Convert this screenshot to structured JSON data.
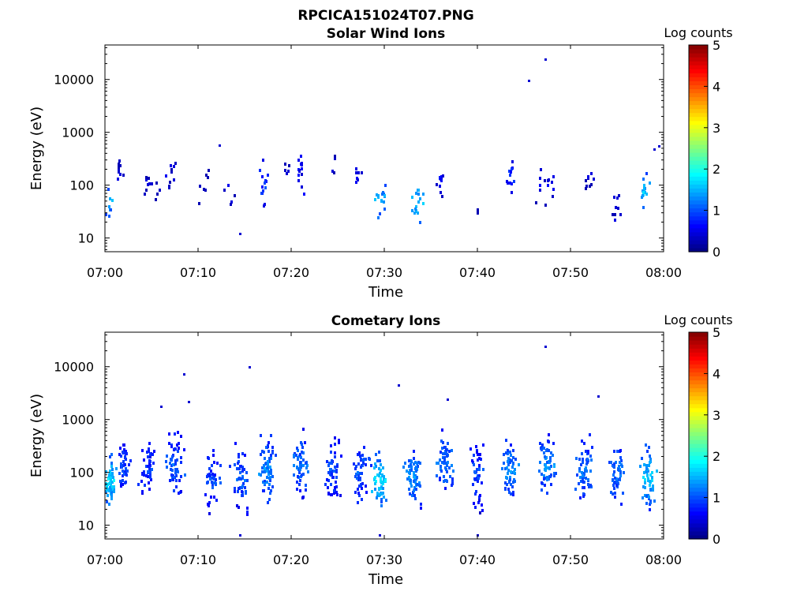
{
  "figure_title": "RPCICA151024T07.PNG",
  "chart_data": [
    {
      "type": "heatmap",
      "title": "Solar Wind Ions",
      "xlabel": "Time",
      "ylabel": "Energy (eV)",
      "x_ticks": [
        "07:00",
        "07:10",
        "07:20",
        "07:30",
        "07:40",
        "07:50",
        "08:00"
      ],
      "x_range_minutes": [
        0,
        60
      ],
      "y_scale": "log",
      "y_ticks": [
        "10",
        "100",
        "1000",
        "10000"
      ],
      "y_range_eV": [
        5.5,
        45000
      ],
      "colorbar": {
        "label": "Log counts",
        "ticks": [
          "0",
          "1",
          "2",
          "3",
          "4",
          "5"
        ],
        "range": [
          0,
          5
        ],
        "colormap": "jet"
      },
      "grid": false,
      "clusters": [
        {
          "t": 0.4,
          "e": 50,
          "w": 1.0,
          "n": 8,
          "lvl": 1.5,
          "spread": 0.25
        },
        {
          "t": 1.5,
          "e": 180,
          "w": 1.2,
          "n": 9,
          "lvl": 0.4,
          "spread": 0.2
        },
        {
          "t": 4.5,
          "e": 120,
          "w": 1.2,
          "n": 8,
          "lvl": 0.4,
          "spread": 0.2
        },
        {
          "t": 5.5,
          "e": 60,
          "w": 1.0,
          "n": 4,
          "lvl": 0.3,
          "spread": 0.2
        },
        {
          "t": 7.0,
          "e": 150,
          "w": 2.0,
          "n": 10,
          "lvl": 0.4,
          "spread": 0.25
        },
        {
          "t": 10.5,
          "e": 90,
          "w": 1.5,
          "n": 7,
          "lvl": 0.3,
          "spread": 0.3
        },
        {
          "t": 13.5,
          "e": 80,
          "w": 1.5,
          "n": 6,
          "lvl": 0.4,
          "spread": 0.3
        },
        {
          "t": 17.0,
          "e": 90,
          "w": 1.0,
          "n": 14,
          "lvl": 0.9,
          "spread": 0.35
        },
        {
          "t": 19.5,
          "e": 180,
          "w": 0.6,
          "n": 5,
          "lvl": 0.4,
          "spread": 0.2
        },
        {
          "t": 21.0,
          "e": 140,
          "w": 1.0,
          "n": 14,
          "lvl": 0.6,
          "spread": 0.35
        },
        {
          "t": 24.5,
          "e": 200,
          "w": 0.6,
          "n": 4,
          "lvl": 0.3,
          "spread": 0.2
        },
        {
          "t": 27.0,
          "e": 170,
          "w": 1.5,
          "n": 8,
          "lvl": 0.5,
          "spread": 0.25
        },
        {
          "t": 29.5,
          "e": 50,
          "w": 1.5,
          "n": 16,
          "lvl": 1.5,
          "spread": 0.3
        },
        {
          "t": 33.5,
          "e": 50,
          "w": 1.5,
          "n": 18,
          "lvl": 1.6,
          "spread": 0.35
        },
        {
          "t": 36.0,
          "e": 130,
          "w": 1.0,
          "n": 12,
          "lvl": 0.6,
          "spread": 0.35
        },
        {
          "t": 40.0,
          "e": 30,
          "w": 0.5,
          "n": 2,
          "lvl": 0.2,
          "spread": 0.1
        },
        {
          "t": 43.5,
          "e": 150,
          "w": 1.0,
          "n": 12,
          "lvl": 0.8,
          "spread": 0.3
        },
        {
          "t": 47.5,
          "e": 100,
          "w": 2.5,
          "n": 14,
          "lvl": 0.5,
          "spread": 0.35
        },
        {
          "t": 52.0,
          "e": 130,
          "w": 1.5,
          "n": 12,
          "lvl": 0.4,
          "spread": 0.35
        },
        {
          "t": 55.0,
          "e": 40,
          "w": 1.2,
          "n": 9,
          "lvl": 0.5,
          "spread": 0.25
        },
        {
          "t": 58.0,
          "e": 70,
          "w": 1.2,
          "n": 16,
          "lvl": 1.6,
          "spread": 0.3
        }
      ],
      "points": [
        {
          "t": 45.5,
          "e": 9500,
          "lvl": 0.4
        },
        {
          "t": 47.3,
          "e": 24000,
          "lvl": 0.4
        },
        {
          "t": 12.3,
          "e": 580,
          "lvl": 0.4
        },
        {
          "t": 59.0,
          "e": 480,
          "lvl": 0.4
        },
        {
          "t": 59.5,
          "e": 550,
          "lvl": 0.4
        },
        {
          "t": 14.5,
          "e": 12,
          "lvl": 0.4
        }
      ]
    },
    {
      "type": "heatmap",
      "title": "Cometary Ions",
      "xlabel": "Time",
      "ylabel": "Energy (eV)",
      "x_ticks": [
        "07:00",
        "07:10",
        "07:20",
        "07:30",
        "07:40",
        "07:50",
        "08:00"
      ],
      "x_range_minutes": [
        0,
        60
      ],
      "y_scale": "log",
      "y_ticks": [
        "10",
        "100",
        "1000",
        "10000"
      ],
      "y_range_eV": [
        5.5,
        45000
      ],
      "colorbar": {
        "label": "Log counts",
        "ticks": [
          "0",
          "1",
          "2",
          "3",
          "4",
          "5"
        ],
        "range": [
          0,
          5
        ],
        "colormap": "jet"
      },
      "grid": false,
      "clusters": [
        {
          "t": 0.5,
          "e": 70,
          "w": 1.5,
          "n": 60,
          "lvl": 1.7,
          "spread": 0.4
        },
        {
          "t": 2.0,
          "e": 120,
          "w": 1.5,
          "n": 40,
          "lvl": 1.0,
          "spread": 0.4
        },
        {
          "t": 4.5,
          "e": 110,
          "w": 2.0,
          "n": 45,
          "lvl": 0.9,
          "spread": 0.4
        },
        {
          "t": 7.5,
          "e": 130,
          "w": 2.0,
          "n": 55,
          "lvl": 1.1,
          "spread": 0.45
        },
        {
          "t": 11.5,
          "e": 70,
          "w": 2.0,
          "n": 45,
          "lvl": 1.0,
          "spread": 0.45
        },
        {
          "t": 14.5,
          "e": 80,
          "w": 2.0,
          "n": 50,
          "lvl": 1.1,
          "spread": 0.45
        },
        {
          "t": 17.5,
          "e": 110,
          "w": 2.2,
          "n": 60,
          "lvl": 1.3,
          "spread": 0.45
        },
        {
          "t": 21.0,
          "e": 140,
          "w": 2.0,
          "n": 55,
          "lvl": 1.2,
          "spread": 0.45
        },
        {
          "t": 24.5,
          "e": 110,
          "w": 1.8,
          "n": 50,
          "lvl": 1.0,
          "spread": 0.45
        },
        {
          "t": 27.5,
          "e": 100,
          "w": 2.0,
          "n": 50,
          "lvl": 1.1,
          "spread": 0.45
        },
        {
          "t": 29.5,
          "e": 70,
          "w": 1.8,
          "n": 55,
          "lvl": 1.7,
          "spread": 0.4
        },
        {
          "t": 33.0,
          "e": 80,
          "w": 2.2,
          "n": 60,
          "lvl": 1.3,
          "spread": 0.45
        },
        {
          "t": 36.5,
          "e": 150,
          "w": 2.0,
          "n": 55,
          "lvl": 1.2,
          "spread": 0.45
        },
        {
          "t": 40.0,
          "e": 90,
          "w": 1.8,
          "n": 45,
          "lvl": 1.0,
          "spread": 0.45
        },
        {
          "t": 43.5,
          "e": 110,
          "w": 2.0,
          "n": 55,
          "lvl": 1.3,
          "spread": 0.45
        },
        {
          "t": 47.5,
          "e": 130,
          "w": 2.2,
          "n": 60,
          "lvl": 1.3,
          "spread": 0.45
        },
        {
          "t": 51.5,
          "e": 110,
          "w": 2.2,
          "n": 55,
          "lvl": 1.2,
          "spread": 0.45
        },
        {
          "t": 55.0,
          "e": 100,
          "w": 2.0,
          "n": 55,
          "lvl": 1.2,
          "spread": 0.45
        },
        {
          "t": 58.3,
          "e": 80,
          "w": 1.8,
          "n": 55,
          "lvl": 1.6,
          "spread": 0.45
        }
      ],
      "points": [
        {
          "t": 6.0,
          "e": 1800,
          "lvl": 0.4
        },
        {
          "t": 8.5,
          "e": 7300,
          "lvl": 0.4
        },
        {
          "t": 15.5,
          "e": 10000,
          "lvl": 0.4
        },
        {
          "t": 31.5,
          "e": 4500,
          "lvl": 0.4
        },
        {
          "t": 47.3,
          "e": 24000,
          "lvl": 0.4
        },
        {
          "t": 53.0,
          "e": 2800,
          "lvl": 0.4
        },
        {
          "t": 36.8,
          "e": 2400,
          "lvl": 0.4
        },
        {
          "t": 9.0,
          "e": 2200,
          "lvl": 0.4
        },
        {
          "t": 14.5,
          "e": 6.5,
          "lvl": 0.4
        },
        {
          "t": 29.5,
          "e": 6.5,
          "lvl": 0.4
        },
        {
          "t": 40.0,
          "e": 6.5,
          "lvl": 0.4
        }
      ]
    }
  ]
}
